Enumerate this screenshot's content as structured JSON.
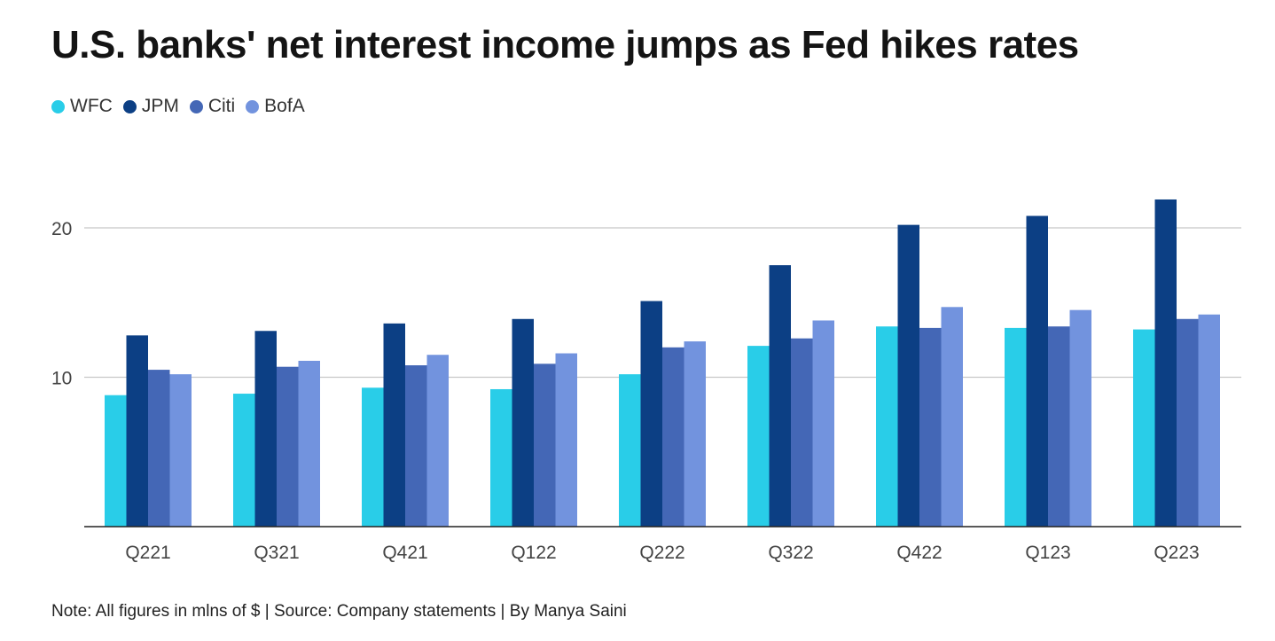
{
  "chart_data": {
    "type": "bar",
    "title": "U.S. banks' net interest income jumps as Fed hikes rates",
    "xlabel": "",
    "ylabel": "",
    "categories": [
      "Q221",
      "Q321",
      "Q421",
      "Q122",
      "Q222",
      "Q322",
      "Q422",
      "Q123",
      "Q223"
    ],
    "series": [
      {
        "name": "WFC",
        "color": "#29cde8",
        "values": [
          8.8,
          8.9,
          9.3,
          9.2,
          10.2,
          12.1,
          13.4,
          13.3,
          13.2
        ]
      },
      {
        "name": "JPM",
        "color": "#0c3f84",
        "values": [
          12.8,
          13.1,
          13.6,
          13.9,
          15.1,
          17.5,
          20.2,
          20.8,
          21.9
        ]
      },
      {
        "name": "Citi",
        "color": "#4467b6",
        "values": [
          10.5,
          10.7,
          10.8,
          10.9,
          12.0,
          12.6,
          13.3,
          13.4,
          13.9
        ]
      },
      {
        "name": "BofA",
        "color": "#7293de",
        "values": [
          10.2,
          11.1,
          11.5,
          11.6,
          12.4,
          13.8,
          14.7,
          14.5,
          14.2
        ]
      }
    ],
    "yticks": [
      10,
      20
    ],
    "ylim": [
      0,
      22
    ],
    "grid": true,
    "legend_position": "top-left"
  },
  "note": "Note: All figures in mlns of $ | Source: Company statements | By Manya Saini"
}
